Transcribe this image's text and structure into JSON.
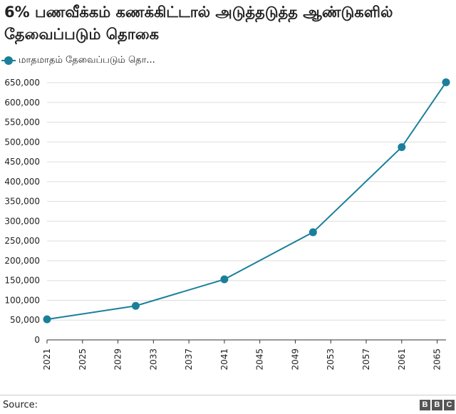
{
  "title": "6% பணவீக்கம் கணக்கிட்டால் அடுத்தடுத்த ஆண்டுகளில் தேவைப்படும் தொகை",
  "legend_label": "மாதமாதம் தேவைப்படும் தொ...",
  "source_label": "Source:",
  "logo": [
    "B",
    "B",
    "C"
  ],
  "colors": {
    "series": "#1b7f9a",
    "grid": "#dddddd",
    "axis": "#333333",
    "text": "#222222"
  },
  "chart_data": {
    "type": "line",
    "title": "6% பணவீக்கம் கணக்கிட்டால் அடுத்தடுத்த ஆண்டுகளில் தேவைப்படும் தொகை",
    "xlabel": "",
    "ylabel": "",
    "series": [
      {
        "name": "மாதமாதம் தேவைப்படும் தொ...",
        "x": [
          2021,
          2031,
          2041,
          2051,
          2061,
          2066
        ],
        "values": [
          52000,
          86000,
          153000,
          272000,
          487000,
          651000
        ]
      }
    ],
    "x_ticks": [
      2021,
      2025,
      2029,
      2033,
      2037,
      2041,
      2045,
      2049,
      2053,
      2057,
      2061,
      2065
    ],
    "y_ticks": [
      0,
      50000,
      100000,
      150000,
      200000,
      250000,
      300000,
      350000,
      400000,
      450000,
      500000,
      550000,
      600000,
      650000
    ],
    "y_tick_labels": [
      "0",
      "50,000",
      "100,000",
      "150,000",
      "200,000",
      "250,000",
      "300,000",
      "350,000",
      "400,000",
      "450,000",
      "500,000",
      "550,000",
      "600,000",
      "650,000"
    ],
    "xlim": [
      2021,
      2066
    ],
    "ylim": [
      0,
      650000
    ],
    "grid": true,
    "legend_position": "top-left"
  }
}
